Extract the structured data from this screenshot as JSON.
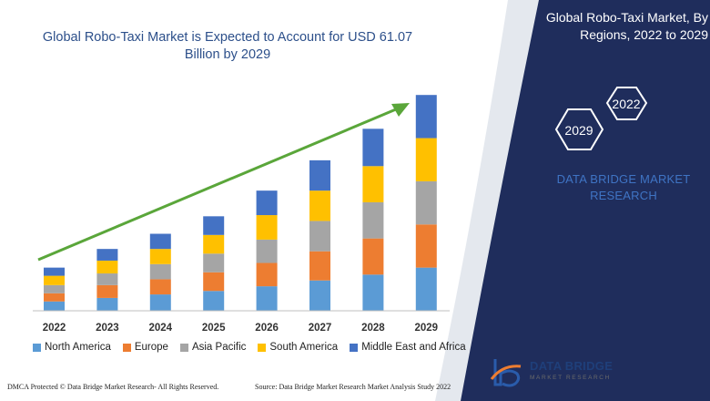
{
  "chart_data": {
    "type": "bar",
    "stacked": true,
    "title": "Global Robo-Taxi Market is Expected to Account for USD 61.07 Billion by 2029",
    "categories": [
      "2022",
      "2023",
      "2024",
      "2025",
      "2026",
      "2027",
      "2028",
      "2029"
    ],
    "series": [
      {
        "name": "North America",
        "color": "#5b9bd5",
        "values": [
          8,
          11,
          14,
          17,
          21,
          26,
          31,
          37
        ]
      },
      {
        "name": "Europe",
        "color": "#ed7d31",
        "values": [
          7,
          11,
          13,
          16,
          20,
          25,
          31,
          37
        ]
      },
      {
        "name": "Asia Pacific",
        "color": "#a5a5a5",
        "values": [
          7,
          10,
          13,
          16,
          20,
          26,
          31,
          37
        ]
      },
      {
        "name": "South America",
        "color": "#ffc000",
        "values": [
          8,
          11,
          13,
          16,
          21,
          26,
          31,
          37
        ]
      },
      {
        "name": "Middle East and Africa",
        "color": "#4472c4",
        "values": [
          7,
          10,
          13,
          16,
          21,
          26,
          32,
          37
        ]
      }
    ],
    "ylim": [
      0,
      200
    ],
    "grid": false,
    "legend_position": "bottom",
    "trend_arrow": true
  },
  "panel": {
    "title": "Global Robo-Taxi Market, By Regions, 2022 to 2029",
    "hex_year_top": "2022",
    "hex_year_bottom": "2029",
    "brand_text": "DATA BRIDGE MARKET RESEARCH"
  },
  "footer": {
    "left": "DMCA Protected © Data Bridge Market Research- All Rights Reserved.",
    "right": "Source: Data Bridge Market Research Market Analysis Study 2022"
  },
  "logo": {
    "name": "DATA BRIDGE",
    "sub": "MARKET RESEARCH"
  },
  "colors": {
    "panel_bg": "#1f2d5c",
    "title": "#2c4f8a",
    "arrow": "#5aa63a"
  }
}
